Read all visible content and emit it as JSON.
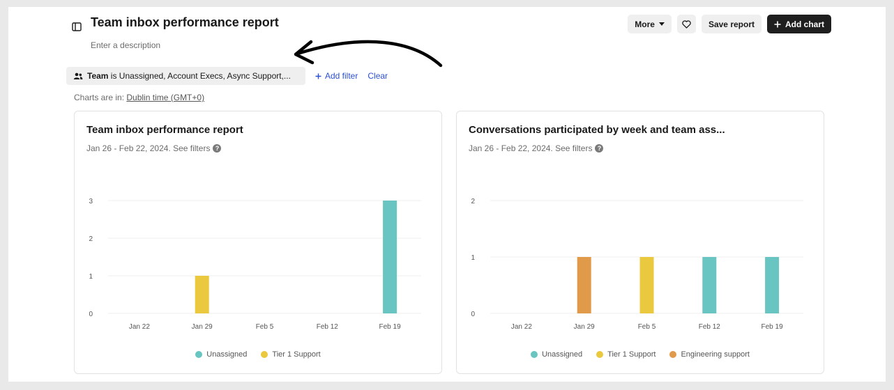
{
  "header": {
    "title": "Team inbox performance report",
    "description_placeholder": "Enter a description"
  },
  "toolbar": {
    "more_label": "More",
    "save_label": "Save report",
    "add_chart_label": "Add chart"
  },
  "filters": {
    "chip_field": "Team",
    "chip_text": " is Unassigned, Account Execs, Async Support,...",
    "add_filter_label": "Add filter",
    "clear_label": "Clear"
  },
  "timezone": {
    "prefix": "Charts are in: ",
    "link": "Dublin time (GMT+0)"
  },
  "colors": {
    "unassigned": "#68c5c1",
    "tier1": "#ebc93f",
    "engineering": "#e1994a",
    "accent": "#2d4fd6"
  },
  "chart_data": [
    {
      "type": "bar",
      "title": "Team inbox performance report",
      "subtitle": "Jan 26 - Feb 22, 2024. See filters",
      "categories": [
        "Jan 22",
        "Jan 29",
        "Feb 5",
        "Feb 12",
        "Feb 19"
      ],
      "ylim": [
        0,
        3
      ],
      "yticks": [
        "0",
        "1",
        "2",
        "3"
      ],
      "series": [
        {
          "name": "Unassigned",
          "color": "#68c5c1",
          "values": [
            0,
            0,
            0,
            0,
            3
          ]
        },
        {
          "name": "Tier 1 Support",
          "color": "#ebc93f",
          "values": [
            0,
            1,
            0,
            0,
            0
          ]
        }
      ],
      "grid": true,
      "legend": "bottom"
    },
    {
      "type": "bar",
      "title": "Conversations participated by week and team ass...",
      "subtitle": "Jan 26 - Feb 22, 2024. See filters",
      "categories": [
        "Jan 22",
        "Jan 29",
        "Feb 5",
        "Feb 12",
        "Feb 19"
      ],
      "ylim": [
        0,
        2
      ],
      "yticks": [
        "0",
        "1",
        "2"
      ],
      "series": [
        {
          "name": "Unassigned",
          "color": "#68c5c1",
          "values": [
            0,
            0,
            0,
            1,
            1
          ]
        },
        {
          "name": "Tier 1 Support",
          "color": "#ebc93f",
          "values": [
            0,
            0,
            1,
            0,
            0
          ]
        },
        {
          "name": "Engineering support",
          "color": "#e1994a",
          "values": [
            0,
            1,
            0,
            0,
            0
          ]
        }
      ],
      "grid": true,
      "legend": "bottom"
    }
  ]
}
